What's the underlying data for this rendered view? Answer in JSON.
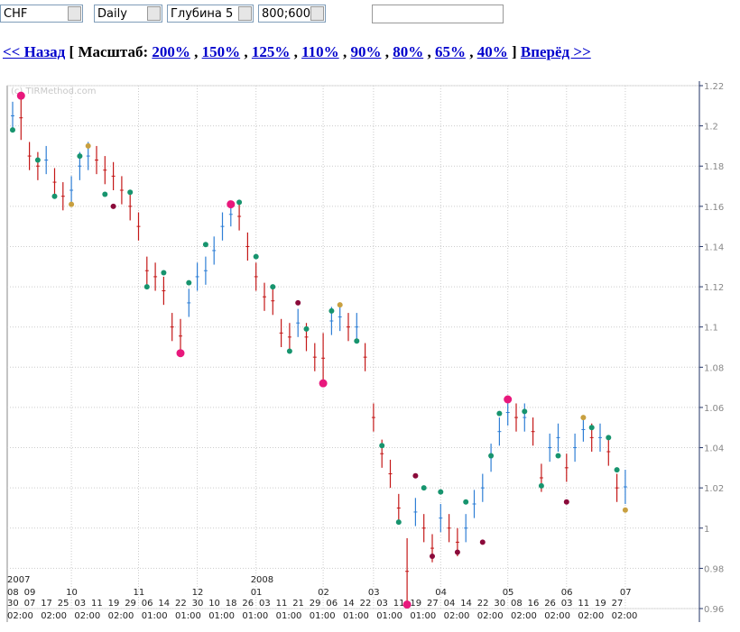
{
  "toolbar": {
    "symbol": "CHF",
    "period": "Daily",
    "depth": "Глубина 5",
    "size": "800;600",
    "input": ""
  },
  "nav": {
    "back": "<< Назад",
    "open": "[",
    "scale_label": "Масштаб:",
    "scales": [
      "200%",
      "150%",
      "125%",
      "110%",
      "90%",
      "80%",
      "65%",
      "40%"
    ],
    "separator": ",",
    "close": "]",
    "forward": "Вперёд >>"
  },
  "chart_data": {
    "type": "ohlc",
    "watermark": "(c) TIRMethod.com",
    "high": [
      1.212,
      1.215,
      1.192,
      1.187,
      1.19,
      1.179,
      1.172,
      1.175,
      1.187,
      1.192,
      1.19,
      1.185,
      1.182,
      1.175,
      1.167,
      1.157,
      1.135,
      1.132,
      1.125,
      1.107,
      1.104,
      1.119,
      1.132,
      1.135,
      1.145,
      1.157,
      1.162,
      1.162,
      1.147,
      1.132,
      1.122,
      1.12,
      1.104,
      1.102,
      1.109,
      1.102,
      1.092,
      1.097,
      1.11,
      1.112,
      1.107,
      1.107,
      1.092,
      1.062,
      1.044,
      1.034,
      1.017,
      0.995,
      1.015,
      1.007,
      0.997,
      1.012,
      1.007,
      1.0,
      1.007,
      1.019,
      1.027,
      1.042,
      1.055,
      1.064,
      1.062,
      1.062,
      1.055,
      1.032,
      1.047,
      1.052,
      1.037,
      1.047,
      1.055,
      1.052,
      1.052,
      1.045,
      1.027,
      1.029
    ],
    "low": [
      1.198,
      1.193,
      1.178,
      1.173,
      1.176,
      1.165,
      1.158,
      1.161,
      1.173,
      1.178,
      1.176,
      1.171,
      1.168,
      1.161,
      1.153,
      1.143,
      1.121,
      1.118,
      1.111,
      1.093,
      1.087,
      1.105,
      1.118,
      1.121,
      1.131,
      1.143,
      1.15,
      1.148,
      1.133,
      1.118,
      1.108,
      1.106,
      1.09,
      1.088,
      1.095,
      1.088,
      1.078,
      1.072,
      1.096,
      1.098,
      1.093,
      1.093,
      1.078,
      1.048,
      1.03,
      1.02,
      1.003,
      0.962,
      1.001,
      0.993,
      0.983,
      0.998,
      0.993,
      0.986,
      0.993,
      1.005,
      1.013,
      1.028,
      1.041,
      1.051,
      1.048,
      1.048,
      1.041,
      1.018,
      1.033,
      1.038,
      1.023,
      1.033,
      1.043,
      1.038,
      1.038,
      1.031,
      1.013,
      1.012
    ],
    "up_color": "#2f7fd6",
    "down_color": "#c41818",
    "markers": [
      {
        "index": 1,
        "value": 1.215,
        "color": "#e8187c"
      },
      {
        "index": 20,
        "value": 1.087,
        "color": "#e8187c"
      },
      {
        "index": 26,
        "value": 1.161,
        "color": "#e8187c"
      },
      {
        "index": 37,
        "value": 1.072,
        "color": "#e8187c"
      },
      {
        "index": 47,
        "value": 0.962,
        "color": "#e8187c"
      },
      {
        "index": 59,
        "value": 1.064,
        "color": "#e8187c"
      },
      {
        "index": 7,
        "value": 1.161,
        "color": "#c8a040"
      },
      {
        "index": 9,
        "value": 1.19,
        "color": "#c8a040"
      },
      {
        "index": 39,
        "value": 1.111,
        "color": "#c8a040"
      },
      {
        "index": 68,
        "value": 1.055,
        "color": "#c8a040"
      },
      {
        "index": 73,
        "value": 1.009,
        "color": "#c8a040"
      },
      {
        "index": 12,
        "value": 1.16,
        "color": "#8b0a3a"
      },
      {
        "index": 34,
        "value": 1.112,
        "color": "#8b0a3a"
      },
      {
        "index": 48,
        "value": 1.026,
        "color": "#8b0a3a"
      },
      {
        "index": 50,
        "value": 0.986,
        "color": "#8b0a3a"
      },
      {
        "index": 53,
        "value": 0.988,
        "color": "#8b0a3a"
      },
      {
        "index": 56,
        "value": 0.993,
        "color": "#8b0a3a"
      },
      {
        "index": 66,
        "value": 1.013,
        "color": "#8b0a3a"
      },
      {
        "index": 0,
        "value": 1.198,
        "color": "#17946e"
      },
      {
        "index": 3,
        "value": 1.183,
        "color": "#17946e"
      },
      {
        "index": 5,
        "value": 1.165,
        "color": "#17946e"
      },
      {
        "index": 8,
        "value": 1.185,
        "color": "#17946e"
      },
      {
        "index": 11,
        "value": 1.166,
        "color": "#17946e"
      },
      {
        "index": 14,
        "value": 1.167,
        "color": "#17946e"
      },
      {
        "index": 16,
        "value": 1.12,
        "color": "#17946e"
      },
      {
        "index": 18,
        "value": 1.127,
        "color": "#17946e"
      },
      {
        "index": 21,
        "value": 1.122,
        "color": "#17946e"
      },
      {
        "index": 23,
        "value": 1.141,
        "color": "#17946e"
      },
      {
        "index": 27,
        "value": 1.162,
        "color": "#17946e"
      },
      {
        "index": 29,
        "value": 1.135,
        "color": "#17946e"
      },
      {
        "index": 31,
        "value": 1.12,
        "color": "#17946e"
      },
      {
        "index": 33,
        "value": 1.088,
        "color": "#17946e"
      },
      {
        "index": 35,
        "value": 1.099,
        "color": "#17946e"
      },
      {
        "index": 38,
        "value": 1.108,
        "color": "#17946e"
      },
      {
        "index": 41,
        "value": 1.093,
        "color": "#17946e"
      },
      {
        "index": 44,
        "value": 1.041,
        "color": "#17946e"
      },
      {
        "index": 46,
        "value": 1.003,
        "color": "#17946e"
      },
      {
        "index": 49,
        "value": 1.02,
        "color": "#17946e"
      },
      {
        "index": 51,
        "value": 1.018,
        "color": "#17946e"
      },
      {
        "index": 54,
        "value": 1.013,
        "color": "#17946e"
      },
      {
        "index": 57,
        "value": 1.036,
        "color": "#17946e"
      },
      {
        "index": 58,
        "value": 1.057,
        "color": "#17946e"
      },
      {
        "index": 61,
        "value": 1.058,
        "color": "#17946e"
      },
      {
        "index": 63,
        "value": 1.021,
        "color": "#17946e"
      },
      {
        "index": 65,
        "value": 1.036,
        "color": "#17946e"
      },
      {
        "index": 69,
        "value": 1.05,
        "color": "#17946e"
      },
      {
        "index": 71,
        "value": 1.045,
        "color": "#17946e"
      },
      {
        "index": 72,
        "value": 1.029,
        "color": "#17946e"
      }
    ],
    "ylim": [
      0.96,
      1.22
    ],
    "yticks": [
      0.96,
      0.98,
      1,
      1.02,
      1.04,
      1.06,
      1.08,
      1.1,
      1.12,
      1.14,
      1.16,
      1.18,
      1.2,
      1.22
    ],
    "grid": true,
    "years": {
      "labels": [
        "2007",
        "2008"
      ],
      "index": [
        0,
        29
      ]
    },
    "months": {
      "labels": [
        "08",
        "09",
        "10",
        "11",
        "12",
        "01",
        "02",
        "03",
        "04",
        "05",
        "06",
        "07"
      ],
      "index": [
        0,
        2,
        7,
        15,
        22,
        29,
        37,
        43,
        51,
        59,
        66,
        73
      ]
    },
    "days": [
      "30",
      "07",
      "17",
      "25",
      "03",
      "11",
      "19",
      "29",
      "06",
      "14",
      "22",
      "30",
      "10",
      "18",
      "26",
      "03",
      "11",
      "21",
      "29",
      "06",
      "14",
      "22",
      "03",
      "11",
      "19",
      "27",
      "04",
      "14",
      "22",
      "30",
      "08",
      "16",
      "26",
      "03",
      "11",
      "19",
      "27"
    ],
    "times": [
      "02:00",
      "02:00",
      "02:00",
      "02:00",
      "01:00",
      "01:00",
      "01:00",
      "01:00",
      "01:00",
      "01:00",
      "01:00",
      "01:00",
      "01:00",
      "02:00",
      "02:00",
      "02:00",
      "02:00",
      "02:00",
      "02:00"
    ]
  }
}
